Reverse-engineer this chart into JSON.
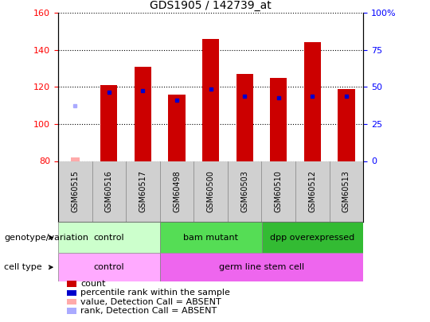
{
  "title": "GDS1905 / 142739_at",
  "samples": [
    "GSM60515",
    "GSM60516",
    "GSM60517",
    "GSM60498",
    "GSM60500",
    "GSM60503",
    "GSM60510",
    "GSM60512",
    "GSM60513"
  ],
  "count_values": [
    null,
    121,
    131,
    116,
    146,
    127,
    125,
    144,
    119
  ],
  "count_absent": [
    82,
    null,
    null,
    null,
    null,
    null,
    null,
    null,
    null
  ],
  "percentile_values": [
    null,
    117,
    118,
    113,
    119,
    115,
    114,
    115,
    115
  ],
  "percentile_absent": [
    110,
    null,
    null,
    null,
    null,
    null,
    null,
    null,
    null
  ],
  "ylim_left": [
    80,
    160
  ],
  "ylim_right": [
    0,
    100
  ],
  "yticks_left": [
    80,
    100,
    120,
    140,
    160
  ],
  "yticks_right": [
    0,
    25,
    50,
    75,
    100
  ],
  "ytick_right_labels": [
    "0",
    "25",
    "50",
    "75",
    "100%"
  ],
  "bar_width": 0.5,
  "count_color": "#cc0000",
  "count_absent_color": "#ffaaaa",
  "percentile_color": "#0000cc",
  "percentile_absent_color": "#aaaaff",
  "plot_bg": "#ffffff",
  "xticklabel_area_color": "#d0d0d0",
  "genotype_groups": [
    {
      "label": "control",
      "start": 0,
      "end": 3,
      "color": "#ccffcc"
    },
    {
      "label": "bam mutant",
      "start": 3,
      "end": 6,
      "color": "#55dd55"
    },
    {
      "label": "dpp overexpressed",
      "start": 6,
      "end": 9,
      "color": "#33bb33"
    }
  ],
  "celltype_groups": [
    {
      "label": "control",
      "start": 0,
      "end": 3,
      "color": "#ffaaff"
    },
    {
      "label": "germ line stem cell",
      "start": 3,
      "end": 9,
      "color": "#ee66ee"
    }
  ],
  "legend_items": [
    {
      "label": "count",
      "color": "#cc0000"
    },
    {
      "label": "percentile rank within the sample",
      "color": "#0000cc"
    },
    {
      "label": "value, Detection Call = ABSENT",
      "color": "#ffaaaa"
    },
    {
      "label": "rank, Detection Call = ABSENT",
      "color": "#aaaaff"
    }
  ],
  "title_fontsize": 10,
  "tick_fontsize": 8,
  "xlabel_fontsize": 7,
  "legend_fontsize": 8,
  "row_label_fontsize": 8,
  "row_text_fontsize": 8
}
